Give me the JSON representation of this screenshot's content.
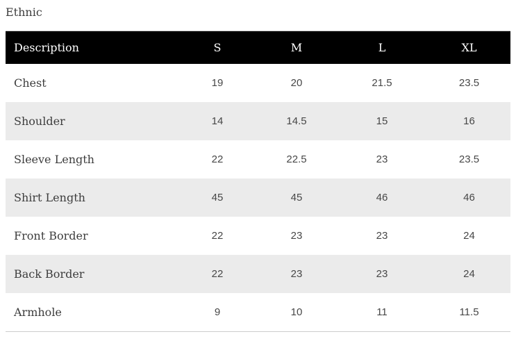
{
  "page_title": "Ethnic",
  "table": {
    "header": {
      "description": "Description",
      "sizes": [
        "S",
        "M",
        "L",
        "XL"
      ]
    },
    "rows": [
      {
        "label": "Chest",
        "values": [
          "19",
          "20",
          "21.5",
          "23.5"
        ]
      },
      {
        "label": "Shoulder",
        "values": [
          "14",
          "14.5",
          "15",
          "16"
        ]
      },
      {
        "label": "Sleeve Length",
        "values": [
          "22",
          "22.5",
          "23",
          "23.5"
        ]
      },
      {
        "label": "Shirt Length",
        "values": [
          "45",
          "45",
          "46",
          "46"
        ]
      },
      {
        "label": "Front Border",
        "values": [
          "22",
          "23",
          "23",
          "24"
        ]
      },
      {
        "label": "Back Border",
        "values": [
          "22",
          "23",
          "23",
          "24"
        ]
      },
      {
        "label": "Armhole",
        "values": [
          "9",
          "10",
          "11",
          "11.5"
        ]
      }
    ]
  },
  "colors": {
    "header_bg": "#000000",
    "header_text": "#ffffff",
    "row_bg": "#ffffff",
    "row_alt_bg": "#ebebeb",
    "label_text": "#3d3d3d",
    "value_text": "#474747",
    "border": "#cccccc"
  }
}
